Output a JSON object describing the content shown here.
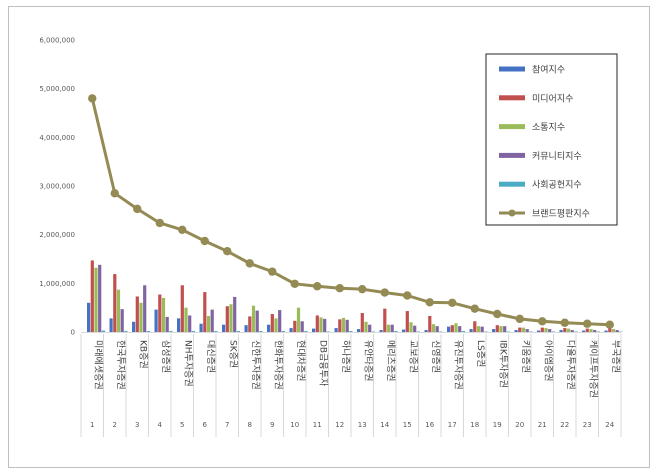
{
  "chart_data": {
    "type": "bar",
    "ylim": [
      0,
      6000000
    ],
    "yticks": [
      "0",
      "1,000,000",
      "2,000,000",
      "3,000,000",
      "4,000,000",
      "5,000,000",
      "6,000,000"
    ],
    "yticks_values": [
      0,
      1000000,
      2000000,
      3000000,
      4000000,
      5000000,
      6000000
    ],
    "grid": false,
    "legend_position": "right",
    "index_labels": [
      "1",
      "2",
      "3",
      "4",
      "5",
      "6",
      "7",
      "8",
      "9",
      "10",
      "11",
      "12",
      "13",
      "14",
      "15",
      "16",
      "17",
      "18",
      "19",
      "20",
      "21",
      "22",
      "23",
      "24"
    ],
    "categories": [
      "미래에셋증권",
      "한국투자증권",
      "KB증권",
      "삼성증권",
      "NH투자증권",
      "대신증권",
      "SK증권",
      "신한투자증권",
      "한화투자증권",
      "현대차증권",
      "DB금융투자",
      "하나증권",
      "유안타증권",
      "메리츠증권",
      "교보증권",
      "신영증권",
      "유진투자증권",
      "LS증권",
      "IBK투자증권",
      "키움증권",
      "아이엠증권",
      "다올투자증권",
      "케이프투자증권",
      "부국증권"
    ],
    "series": [
      {
        "name": "참여지수",
        "kind": "bar",
        "color": "#4472c4",
        "values": [
          600000,
          280000,
          210000,
          460000,
          280000,
          170000,
          150000,
          140000,
          150000,
          80000,
          70000,
          80000,
          60000,
          40000,
          50000,
          40000,
          110000,
          60000,
          60000,
          40000,
          30000,
          40000,
          30000,
          30000
        ]
      },
      {
        "name": "미디어지수",
        "kind": "bar",
        "color": "#c0504d",
        "values": [
          1470000,
          1190000,
          730000,
          770000,
          960000,
          820000,
          530000,
          320000,
          370000,
          230000,
          340000,
          260000,
          390000,
          480000,
          430000,
          330000,
          140000,
          220000,
          140000,
          90000,
          90000,
          80000,
          70000,
          90000
        ]
      },
      {
        "name": "소통지수",
        "kind": "bar",
        "color": "#9bbb59",
        "values": [
          1320000,
          870000,
          600000,
          700000,
          500000,
          330000,
          570000,
          540000,
          280000,
          500000,
          300000,
          290000,
          210000,
          150000,
          200000,
          160000,
          180000,
          120000,
          120000,
          90000,
          80000,
          70000,
          60000,
          60000
        ]
      },
      {
        "name": "커뮤니티지수",
        "kind": "bar",
        "color": "#8064a2",
        "values": [
          1380000,
          470000,
          960000,
          310000,
          340000,
          460000,
          720000,
          440000,
          450000,
          220000,
          270000,
          250000,
          150000,
          150000,
          130000,
          120000,
          120000,
          110000,
          120000,
          60000,
          60000,
          40000,
          40000,
          40000
        ]
      },
      {
        "name": "사회공헌지수",
        "kind": "bar",
        "color": "#4bacc6",
        "values": [
          30000,
          20000,
          20000,
          20000,
          20000,
          20000,
          20000,
          20000,
          20000,
          20000,
          10000,
          20000,
          10000,
          20000,
          10000,
          10000,
          20000,
          10000,
          10000,
          10000,
          10000,
          10000,
          10000,
          10000
        ]
      },
      {
        "name": "브랜드평판지수",
        "kind": "line",
        "color": "#948a54",
        "values": [
          4800000,
          2850000,
          2530000,
          2240000,
          2100000,
          1870000,
          1660000,
          1410000,
          1240000,
          990000,
          940000,
          900000,
          880000,
          810000,
          750000,
          610000,
          600000,
          480000,
          370000,
          270000,
          220000,
          190000,
          170000,
          150000
        ]
      }
    ]
  }
}
